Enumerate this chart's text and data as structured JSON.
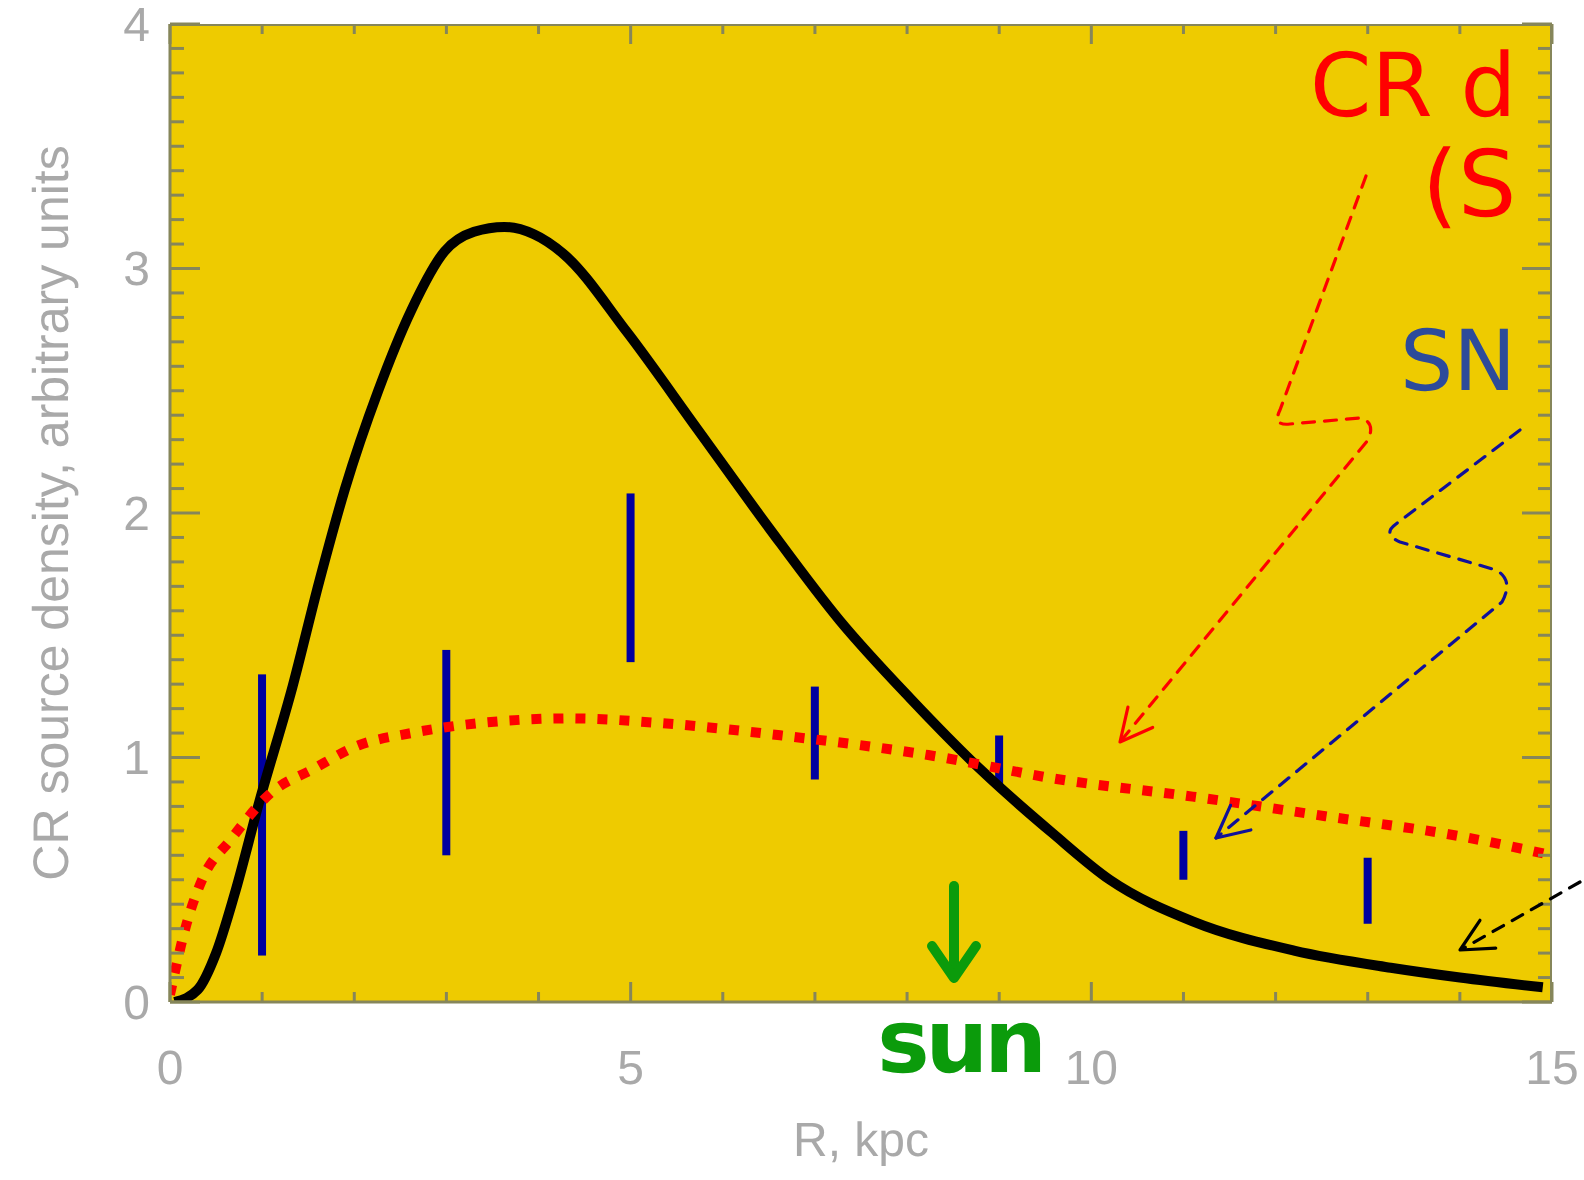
{
  "chart_data": {
    "type": "line",
    "xlabel": "R, kpc",
    "ylabel": "CR source density, arbitrary units",
    "marker": "none",
    "xlim": [
      0,
      15
    ],
    "ylim": [
      0,
      4
    ],
    "xticks": [
      0,
      {
        "value": 1,
        "label": null
      },
      {
        "value": 2,
        "label": null
      },
      {
        "value": 3,
        "label": null
      },
      {
        "value": 4,
        "label": null
      },
      5,
      {
        "value": 6,
        "label": null
      },
      {
        "value": 7,
        "label": null
      },
      {
        "value": 8,
        "label": null
      },
      {
        "value": 9,
        "label": null
      },
      10,
      {
        "value": 11,
        "label": null
      },
      {
        "value": 12,
        "label": null
      },
      {
        "value": 13,
        "label": null
      },
      {
        "value": 14,
        "label": null
      },
      15
    ],
    "yticks": [
      0,
      {
        "value": 0.1,
        "label": null
      },
      {
        "value": 0.2,
        "label": null
      },
      {
        "value": 0.3,
        "label": null
      },
      {
        "value": 0.4,
        "label": null
      },
      {
        "value": 0.5,
        "label": null
      },
      {
        "value": 0.6,
        "label": null
      },
      {
        "value": 0.7,
        "label": null
      },
      {
        "value": 0.8,
        "label": null
      },
      {
        "value": 0.9,
        "label": null
      },
      1,
      {
        "value": 1.1,
        "label": null
      },
      {
        "value": 1.2,
        "label": null
      },
      {
        "value": 1.3,
        "label": null
      },
      {
        "value": 1.4,
        "label": null
      },
      {
        "value": 1.5,
        "label": null
      },
      {
        "value": 1.6,
        "label": null
      },
      {
        "value": 1.7,
        "label": null
      },
      {
        "value": 1.8,
        "label": null
      },
      {
        "value": 1.9,
        "label": null
      },
      2,
      {
        "value": 2.1,
        "label": null
      },
      {
        "value": 2.2,
        "label": null
      },
      {
        "value": 2.3,
        "label": null
      },
      {
        "value": 2.4,
        "label": null
      },
      {
        "value": 2.5,
        "label": null
      },
      {
        "value": 2.6,
        "label": null
      },
      {
        "value": 2.7,
        "label": null
      },
      {
        "value": 2.8,
        "label": null
      },
      {
        "value": 2.9,
        "label": null
      },
      3,
      {
        "value": 3.1,
        "label": null
      },
      {
        "value": 3.2,
        "label": null
      },
      {
        "value": 3.3,
        "label": null
      },
      {
        "value": 3.4,
        "label": null
      },
      {
        "value": 3.5,
        "label": null
      },
      {
        "value": 3.6,
        "label": null
      },
      {
        "value": 3.7,
        "label": null
      },
      {
        "value": 3.8,
        "label": null
      },
      {
        "value": 3.9,
        "label": null
      },
      4
    ],
    "series": [
      {
        "color": "#000000",
        "line_style": "solid",
        "x": [
          0.05,
          0.3,
          0.5,
          0.7,
          0.97,
          1.33,
          1.62,
          1.9,
          2.26,
          2.62,
          2.98,
          3.3,
          3.63,
          3.95,
          4.27,
          4.96,
          5.73,
          6.5,
          7.27,
          8.04,
          8.8,
          9.58,
          10.2,
          11.1,
          12.2,
          13.25,
          14.0,
          14.9
        ],
        "values": [
          0,
          0.05,
          0.2,
          0.44,
          0.82,
          1.29,
          1.72,
          2.1,
          2.5,
          2.83,
          3.07,
          3.15,
          3.17,
          3.14,
          3.06,
          2.74,
          2.34,
          1.94,
          1.56,
          1.24,
          0.95,
          0.69,
          0.5,
          0.33,
          0.21,
          0.14,
          0.1,
          0.06
        ]
      },
      {
        "color": "#ff0000",
        "line_style": "dotted",
        "x": [
          0,
          0.18,
          0.36,
          0.65,
          1.11,
          1.54,
          2.05,
          2.62,
          3.34,
          4.35,
          5.35,
          6.64,
          8.23,
          9.66,
          11.1,
          12.54,
          13.97,
          15
        ],
        "values": [
          0.03,
          0.32,
          0.51,
          0.66,
          0.86,
          0.95,
          1.05,
          1.1,
          1.14,
          1.16,
          1.14,
          1.09,
          1.01,
          0.91,
          0.84,
          0.76,
          0.68,
          0.6
        ]
      },
      {
        "type": "bar",
        "color": "#0000a0",
        "x": [
          1,
          3,
          5,
          7,
          9,
          11,
          13
        ],
        "base": [
          0.19,
          0.6,
          1.39,
          0.91,
          0.89,
          0.5,
          0.32
        ],
        "values": [
          1.15,
          0.84,
          0.69,
          0.38,
          0.2,
          0.2,
          0.27
        ]
      }
    ],
    "annotations": [
      "CR d",
      "(S",
      "SN",
      "sun"
    ]
  }
}
